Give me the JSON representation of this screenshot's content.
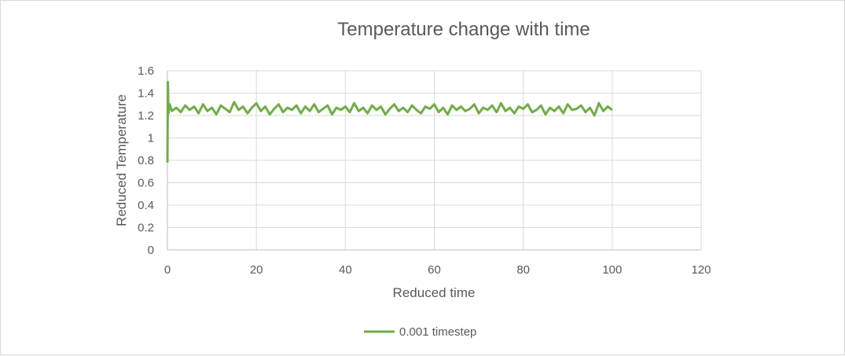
{
  "chart_data": {
    "type": "line",
    "title": "Temperature  change with time",
    "xlabel": "Reduced time",
    "ylabel": "Reduced Temperature",
    "xlim": [
      0,
      120
    ],
    "ylim": [
      0,
      1.6
    ],
    "x_ticks": [
      "0",
      "20",
      "40",
      "60",
      "80",
      "100",
      "120"
    ],
    "y_ticks": [
      "0",
      "0.2",
      "0.4",
      "0.6",
      "0.8",
      "1",
      "1.2",
      "1.4",
      "1.6"
    ],
    "grid": true,
    "legend_position": "bottom",
    "series": [
      {
        "name": "0.001 timestep",
        "color": "#70ad47",
        "x": [
          0,
          0.1,
          0.25,
          0.5,
          1,
          2,
          3,
          4,
          5,
          6,
          7,
          8,
          9,
          10,
          11,
          12,
          13,
          14,
          15,
          16,
          17,
          18,
          19,
          20,
          21,
          22,
          23,
          24,
          25,
          26,
          27,
          28,
          29,
          30,
          31,
          32,
          33,
          34,
          35,
          36,
          37,
          38,
          39,
          40,
          41,
          42,
          43,
          44,
          45,
          46,
          47,
          48,
          49,
          50,
          51,
          52,
          53,
          54,
          55,
          56,
          57,
          58,
          59,
          60,
          61,
          62,
          63,
          64,
          65,
          66,
          67,
          68,
          69,
          70,
          71,
          72,
          73,
          74,
          75,
          76,
          77,
          78,
          79,
          80,
          81,
          82,
          83,
          84,
          85,
          86,
          87,
          88,
          89,
          90,
          91,
          92,
          93,
          94,
          95,
          96,
          97,
          98,
          99,
          100
        ],
        "y": [
          0.78,
          1.5,
          1.22,
          1.3,
          1.24,
          1.27,
          1.23,
          1.29,
          1.25,
          1.28,
          1.22,
          1.3,
          1.24,
          1.27,
          1.21,
          1.29,
          1.26,
          1.23,
          1.32,
          1.25,
          1.28,
          1.22,
          1.27,
          1.31,
          1.24,
          1.28,
          1.21,
          1.26,
          1.3,
          1.23,
          1.27,
          1.25,
          1.29,
          1.22,
          1.28,
          1.24,
          1.3,
          1.23,
          1.26,
          1.29,
          1.21,
          1.27,
          1.25,
          1.28,
          1.23,
          1.31,
          1.24,
          1.27,
          1.22,
          1.29,
          1.25,
          1.28,
          1.21,
          1.26,
          1.3,
          1.24,
          1.27,
          1.23,
          1.29,
          1.25,
          1.22,
          1.28,
          1.26,
          1.3,
          1.23,
          1.27,
          1.21,
          1.29,
          1.25,
          1.28,
          1.24,
          1.26,
          1.3,
          1.22,
          1.27,
          1.25,
          1.29,
          1.23,
          1.31,
          1.24,
          1.27,
          1.22,
          1.28,
          1.26,
          1.3,
          1.23,
          1.25,
          1.29,
          1.21,
          1.27,
          1.24,
          1.28,
          1.22,
          1.3,
          1.25,
          1.26,
          1.29,
          1.23,
          1.27,
          1.2,
          1.31,
          1.24,
          1.28,
          1.25
        ]
      }
    ]
  }
}
